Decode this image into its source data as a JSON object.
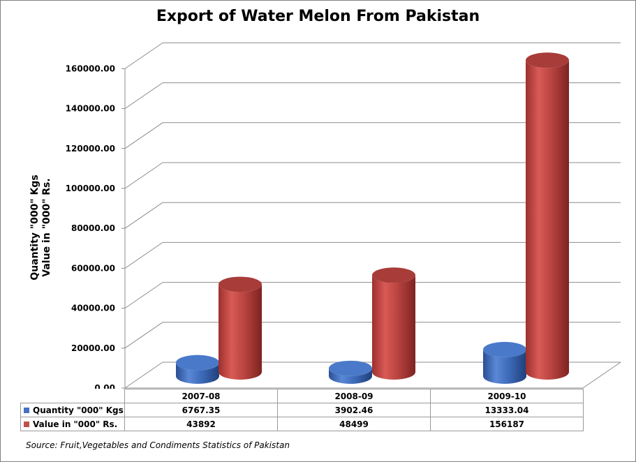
{
  "chart_data": {
    "type": "bar",
    "variant": "3d-cylinder",
    "title": "Export of Water Melon From Pakistan",
    "ylabel_lines": [
      "Quantity \"000\" Kgs",
      "Value in \"000\" Rs."
    ],
    "xlabel": "",
    "categories": [
      "2007-08",
      "2008-09",
      "2009-10"
    ],
    "series": [
      {
        "name": "Quantity \"000\" Kgs",
        "color": "#4472c4",
        "values": [
          6767.35,
          3902.46,
          13333.04
        ],
        "display": [
          "6767.35",
          "3902.46",
          "13333.04"
        ]
      },
      {
        "name": "Value in \"000\" Rs.",
        "color": "#c0504d",
        "values": [
          43892,
          48499,
          156187
        ],
        "display": [
          "43892",
          "48499",
          "156187"
        ]
      }
    ],
    "ylim": [
      0,
      160000
    ],
    "yticks": [
      "0.00",
      "20000.00",
      "40000.00",
      "60000.00",
      "80000.00",
      "100000.00",
      "120000.00",
      "140000.00",
      "160000.00"
    ],
    "grid": true,
    "legend": "data-table-below",
    "source": "Source: Fruit,Vegetables and Condiments Statistics of Pakistan"
  }
}
